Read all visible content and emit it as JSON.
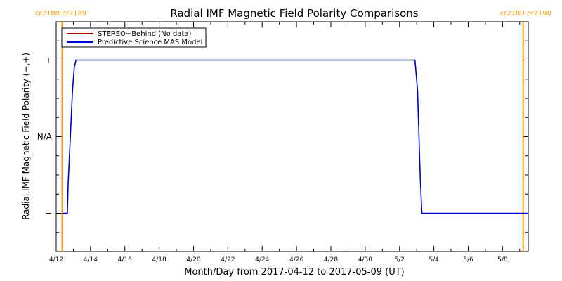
{
  "chart_data": {
    "type": "line",
    "title": "Radial IMF Magnetic Field Polarity Comparisons",
    "xlabel": "Month/Day from 2017-04-12 to 2017-05-09 (UT)",
    "ylabel": "Radial IMF Magnetic Field Polarity (−,+)",
    "x_unit": "days since 2017-04-12 00:00 UT",
    "xlim": [
      0,
      27.5
    ],
    "ylim": [
      -1.5,
      1.5
    ],
    "x_ticks": [
      {
        "x": 0,
        "label": "4/12"
      },
      {
        "x": 2,
        "label": "4/14"
      },
      {
        "x": 4,
        "label": "4/16"
      },
      {
        "x": 6,
        "label": "4/18"
      },
      {
        "x": 8,
        "label": "4/20"
      },
      {
        "x": 10,
        "label": "4/22"
      },
      {
        "x": 12,
        "label": "4/24"
      },
      {
        "x": 14,
        "label": "4/26"
      },
      {
        "x": 16,
        "label": "4/28"
      },
      {
        "x": 18,
        "label": "4/30"
      },
      {
        "x": 20,
        "label": "5/2"
      },
      {
        "x": 22,
        "label": "5/4"
      },
      {
        "x": 24,
        "label": "5/6"
      },
      {
        "x": 26,
        "label": "5/8"
      }
    ],
    "y_ticks": [
      {
        "y": 1,
        "label": "+"
      },
      {
        "y": 0,
        "label": "N/A"
      },
      {
        "y": -1,
        "label": "−"
      }
    ],
    "series": [
      {
        "name": "STEREO−Behind (No data)",
        "color": "#b00000",
        "x": [],
        "y": []
      },
      {
        "name": "Predictive Science MAS Model",
        "color": "#0000cc",
        "x": [
          0.35,
          0.65,
          0.7,
          0.95,
          1.05,
          1.15,
          20.9,
          21.05,
          21.2,
          21.3,
          27.5
        ],
        "y": [
          -1,
          -1,
          -0.6,
          0.6,
          0.9,
          1,
          1,
          0.6,
          -0.5,
          -1,
          -1
        ]
      }
    ],
    "carrington_markers": [
      {
        "x": 0.35,
        "label": "cr2188 cr2189",
        "color": "#ff9900"
      },
      {
        "x": 27.2,
        "label": "cr2189 cr2190",
        "color": "#ff9900"
      }
    ],
    "legend_position": "top-left"
  }
}
